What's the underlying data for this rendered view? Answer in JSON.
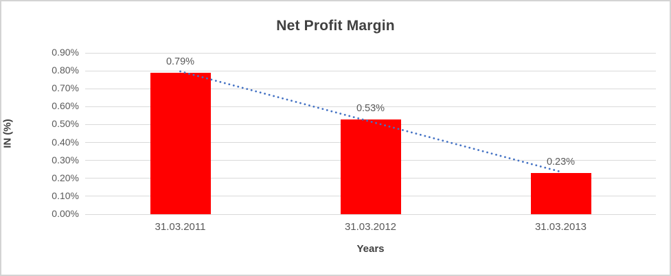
{
  "chart_data": {
    "type": "bar",
    "title": "Net Profit Margin",
    "xlabel": "Years",
    "ylabel": "IN (%)",
    "categories": [
      "31.03.2011",
      "31.03.2012",
      "31.03.2013"
    ],
    "series": [
      {
        "name": "Net Profit Margin",
        "values": [
          0.79,
          0.53,
          0.23
        ]
      }
    ],
    "data_labels": [
      "0.79%",
      "0.53%",
      "0.23%"
    ],
    "ylim": [
      0.0,
      0.9
    ],
    "ytick_step": 0.1,
    "ytick_labels": [
      "0.00%",
      "0.10%",
      "0.20%",
      "0.30%",
      "0.40%",
      "0.50%",
      "0.60%",
      "0.70%",
      "0.80%",
      "0.90%"
    ],
    "grid": true,
    "legend": "none",
    "bar_color": "#ff0000",
    "trendline": {
      "type": "linear",
      "style": "dotted",
      "color": "#4472c4"
    }
  }
}
